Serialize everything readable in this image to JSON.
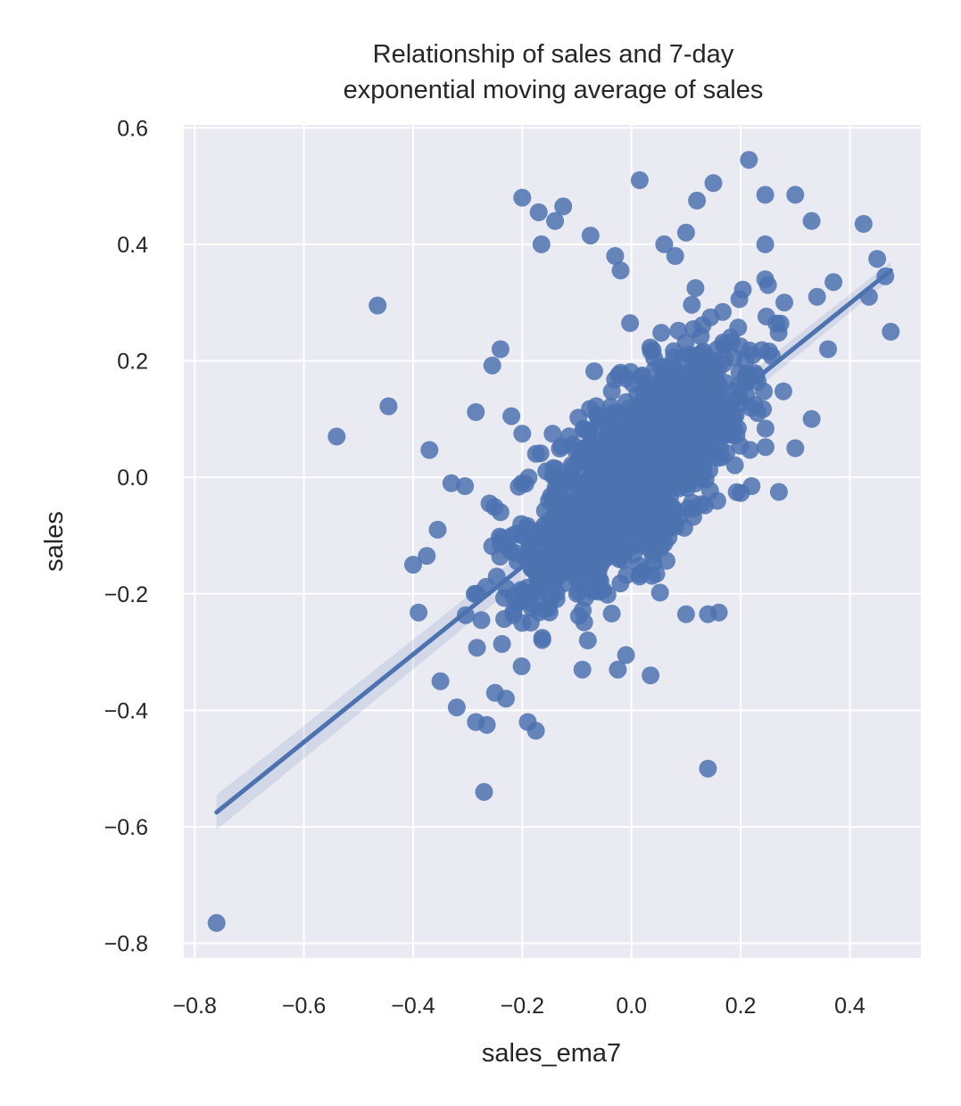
{
  "chart_data": {
    "type": "scatter",
    "title_lines": [
      "Relationship of sales and 7-day",
      "exponential moving average of sales"
    ],
    "xlabel": "sales_ema7",
    "ylabel": "sales",
    "xlim": [
      -0.82,
      0.53
    ],
    "ylim": [
      -0.825,
      0.605
    ],
    "xticks": [
      -0.8,
      -0.6,
      -0.4,
      -0.2,
      0.0,
      0.2,
      0.4
    ],
    "xtick_labels": [
      "−0.8",
      "−0.6",
      "−0.4",
      "−0.2",
      "0.0",
      "0.2",
      "0.4"
    ],
    "yticks": [
      0.6,
      0.4,
      0.2,
      0.0,
      -0.2,
      -0.4,
      -0.6,
      -0.8
    ],
    "ytick_labels": [
      "0.6",
      "0.4",
      "0.2",
      "0.0",
      "−0.2",
      "−0.4",
      "−0.6",
      "−0.8"
    ],
    "grid": true,
    "regression": {
      "x": [
        -0.76,
        0.475
      ],
      "y": [
        -0.575,
        0.355
      ],
      "ci_half_width_low": 0.03,
      "ci_half_width_high": 0.015
    },
    "point_color": "#4c72b0",
    "background_color": "#eaeaf2",
    "cluster": {
      "n": 1400,
      "slope": 0.75,
      "noise": 0.075,
      "center_x": 0.0,
      "center_y": 0.0,
      "spread_x": 0.1,
      "seed": 7
    },
    "points": [
      [
        -0.76,
        -0.765
      ],
      [
        -0.465,
        0.295
      ],
      [
        -0.445,
        0.122
      ],
      [
        -0.54,
        0.07
      ],
      [
        -0.37,
        0.047
      ],
      [
        -0.27,
        -0.54
      ],
      [
        0.14,
        -0.5
      ],
      [
        -0.2,
        0.48
      ],
      [
        -0.17,
        0.455
      ],
      [
        -0.14,
        0.44
      ],
      [
        -0.125,
        0.465
      ],
      [
        -0.165,
        0.4
      ],
      [
        -0.075,
        0.415
      ],
      [
        0.015,
        0.51
      ],
      [
        0.12,
        0.475
      ],
      [
        0.15,
        0.505
      ],
      [
        0.215,
        0.545
      ],
      [
        0.245,
        0.485
      ],
      [
        0.3,
        0.485
      ],
      [
        0.33,
        0.44
      ],
      [
        0.425,
        0.435
      ],
      [
        0.45,
        0.375
      ],
      [
        0.465,
        0.345
      ],
      [
        0.435,
        0.31
      ],
      [
        0.475,
        0.25
      ],
      [
        -0.255,
        0.192
      ],
      [
        -0.24,
        0.22
      ],
      [
        -0.285,
        0.112
      ],
      [
        -0.33,
        -0.01
      ],
      [
        -0.305,
        -0.015
      ],
      [
        -0.4,
        -0.15
      ],
      [
        -0.375,
        -0.135
      ],
      [
        -0.355,
        -0.09
      ],
      [
        -0.39,
        -0.232
      ],
      [
        -0.35,
        -0.35
      ],
      [
        -0.32,
        -0.395
      ],
      [
        -0.285,
        -0.42
      ],
      [
        -0.265,
        -0.425
      ],
      [
        -0.19,
        -0.42
      ],
      [
        -0.175,
        -0.435
      ],
      [
        -0.09,
        -0.33
      ],
      [
        -0.025,
        -0.33
      ],
      [
        -0.01,
        -0.305
      ],
      [
        0.035,
        -0.34
      ],
      [
        0.14,
        -0.235
      ],
      [
        0.16,
        -0.232
      ],
      [
        0.1,
        -0.235
      ],
      [
        0.245,
        0.4
      ],
      [
        0.25,
        0.33
      ],
      [
        0.28,
        0.3
      ],
      [
        0.36,
        0.22
      ],
      [
        0.33,
        0.1
      ],
      [
        0.3,
        0.05
      ],
      [
        0.27,
        -0.025
      ],
      [
        0.22,
        -0.015
      ],
      [
        0.1,
        0.42
      ],
      [
        0.08,
        0.38
      ],
      [
        0.06,
        0.4
      ],
      [
        -0.03,
        0.38
      ],
      [
        -0.02,
        0.355
      ],
      [
        0.37,
        0.335
      ],
      [
        0.34,
        0.31
      ],
      [
        -0.22,
        0.105
      ],
      [
        -0.2,
        0.075
      ],
      [
        -0.26,
        -0.045
      ],
      [
        -0.24,
        -0.06
      ],
      [
        -0.2,
        -0.25
      ],
      [
        -0.23,
        -0.38
      ],
      [
        -0.25,
        -0.37
      ],
      [
        -0.08,
        -0.28
      ]
    ]
  }
}
